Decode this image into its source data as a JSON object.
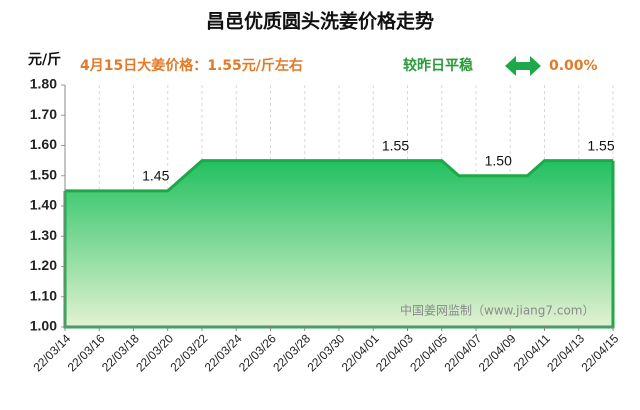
{
  "chart_data": {
    "type": "area",
    "title": "昌邑优质圆头洗姜价格走势",
    "y_label": "元/斤",
    "subtitle": "4月15日大姜价格：1.55元/斤左右",
    "change_text": "较昨日平稳",
    "change_value": "0.00%",
    "watermark": "中国姜网监制（www.jiang7.com）",
    "categories": [
      "22/03/14",
      null,
      "22/03/16",
      null,
      "22/03/18",
      null,
      "22/03/20",
      null,
      "22/03/22",
      null,
      "22/03/24",
      null,
      "22/03/26",
      null,
      "22/03/28",
      null,
      "22/03/30",
      null,
      "22/04/01",
      null,
      "22/04/03",
      null,
      "22/04/05",
      null,
      "22/04/07",
      null,
      "22/04/09",
      null,
      "22/04/11",
      null,
      "22/04/13",
      null,
      "22/04/15"
    ],
    "values": [
      1.45,
      1.45,
      1.45,
      1.45,
      1.45,
      1.45,
      1.45,
      1.5,
      1.55,
      1.55,
      1.55,
      1.55,
      1.55,
      1.55,
      1.55,
      1.55,
      1.55,
      1.55,
      1.55,
      1.55,
      1.55,
      1.55,
      1.55,
      1.5,
      1.5,
      1.5,
      1.5,
      1.5,
      1.55,
      1.55,
      1.55,
      1.55,
      1.55
    ],
    "value_labels": [
      null,
      null,
      null,
      null,
      null,
      null,
      "1.45",
      null,
      null,
      null,
      null,
      null,
      null,
      null,
      null,
      null,
      null,
      null,
      null,
      null,
      "1.55",
      null,
      null,
      null,
      null,
      null,
      "1.50",
      null,
      null,
      null,
      null,
      null,
      "1.55"
    ],
    "color": "#1fa84a",
    "ylim": [
      1.0,
      1.8
    ],
    "yticks": [
      {
        "value": 1.0,
        "label": "1.00"
      },
      {
        "value": 1.1,
        "label": "1.10"
      },
      {
        "value": 1.2,
        "label": "1.20"
      },
      {
        "value": 1.3,
        "label": "1.30"
      },
      {
        "value": 1.4,
        "label": "1.40"
      },
      {
        "value": 1.5,
        "label": "1.50"
      },
      {
        "value": 1.6,
        "label": "1.60"
      },
      {
        "value": 1.7,
        "label": "1.70"
      },
      {
        "value": 1.8,
        "label": "1.80"
      }
    ],
    "grid": true
  }
}
